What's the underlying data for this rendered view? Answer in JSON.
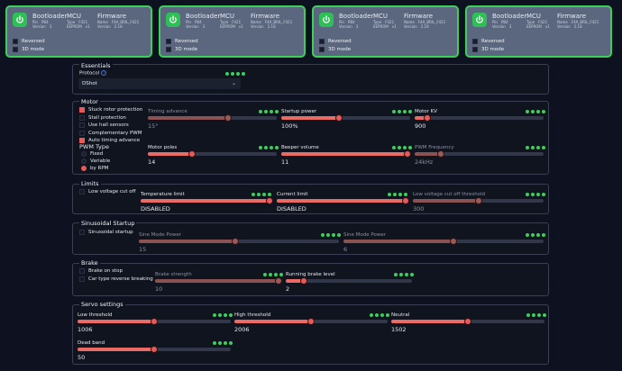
{
  "esc_cards": [
    {
      "left": 6,
      "bootloader": {
        "title": "Bootloader",
        "pin_label": "Pin",
        "pin": "PB4",
        "version_label": "Version",
        "version": "3"
      },
      "mcu": {
        "title": "MCU",
        "type_label": "Type",
        "type": "F421",
        "eeprom_label": "EEPROM",
        "eeprom": "v1"
      },
      "firmware": {
        "title": "Firmware",
        "name_label": "Name",
        "name": "F4A_BRIL_F421",
        "version_label": "Version",
        "version": "2.18"
      },
      "reversed": "Reversed",
      "mode3d": "3D mode"
    }
  ],
  "cards": {
    "bootloader_title": "Bootloader",
    "mcu_title": "MCU",
    "firmware_title": "Firmware",
    "pin_label": "Pin",
    "pin": "PB4",
    "bl_version_label": "Version",
    "bl_version": "3",
    "type_label": "Type",
    "type": "F421",
    "eeprom_label": "EEPROM",
    "eeprom": "v1",
    "name_label": "Name",
    "name": "F4A_BRIL_F421",
    "fw_version_label": "Version",
    "fw_version": "2.18",
    "reversed": "Reversed",
    "mode3d": "3D mode"
  },
  "essentials": {
    "title": "Essentials",
    "protocol_label": "Protocol",
    "protocol_value": "DShot"
  },
  "motor": {
    "title": "Motor",
    "checks": [
      "Stuck rotor protection",
      "Stall protection",
      "Use hall sensors",
      "Complementary PWM",
      "Auto timing advance"
    ],
    "checks_on": [
      true,
      false,
      false,
      false,
      true
    ],
    "pwm_type_label": "PWM Type",
    "pwm_options": [
      "Fixed",
      "Variable",
      "by RPM"
    ],
    "pwm_selected": 2,
    "timing_label": "Timing advance",
    "timing_value": "15°",
    "timing_level": 0.62,
    "startup_label": "Startup power",
    "startup_value": "100%",
    "startup_level": 0.45,
    "kv_label": "Motor KV",
    "kv_value": "900",
    "kv_level": 0.1,
    "poles_label": "Motor poles",
    "poles_value": "14",
    "poles_level": 0.34,
    "beeper_label": "Beeper volume",
    "beeper_value": "11",
    "beeper_level": 0.98,
    "pwmfreq_label": "PWM Frequency",
    "pwmfreq_value": "24kHz",
    "pwmfreq_level": 0.2
  },
  "limits": {
    "title": "Limits",
    "lowvolt_check": "Low voltage cut off",
    "temp_label": "Temperature limit",
    "temp_value": "DISABLED",
    "temp_level": 1.0,
    "current_label": "Current limit",
    "current_value": "DISABLED",
    "current_level": 1.0,
    "lowvolt_label": "Low voltage cut off threshold",
    "lowvolt_value": "300",
    "lowvolt_level": 0.5
  },
  "sinusoidal": {
    "title": "Sinusoidal Startup",
    "check": "Sinusoidal startup",
    "power_label": "Sine Mode Power",
    "power_value": "15",
    "power_level": 0.48,
    "power2_label": "Sine Mode Power",
    "power2_value": "6",
    "power2_level": 0.55
  },
  "brake": {
    "title": "Brake",
    "checks": [
      "Brake on stop",
      "Car type reverse breaking"
    ],
    "strength_label": "Brake strength",
    "strength_value": "10",
    "strength_level": 0.98,
    "running_label": "Running brake level",
    "running_value": "2",
    "running_level": 0.14
  },
  "servo": {
    "title": "Servo settings",
    "low_label": "Low threshold",
    "low_value": "1006",
    "low_level": 0.5,
    "high_label": "High threshold",
    "high_value": "2006",
    "high_level": 0.5,
    "neutral_label": "Neutral",
    "neutral_value": "1502",
    "neutral_level": 0.5,
    "dead_label": "Dead band",
    "dead_value": "50",
    "dead_level": 0.5
  },
  "colors": {
    "accent": "#e85a5a",
    "ok": "#3bd05a",
    "background": "#0e1220"
  }
}
